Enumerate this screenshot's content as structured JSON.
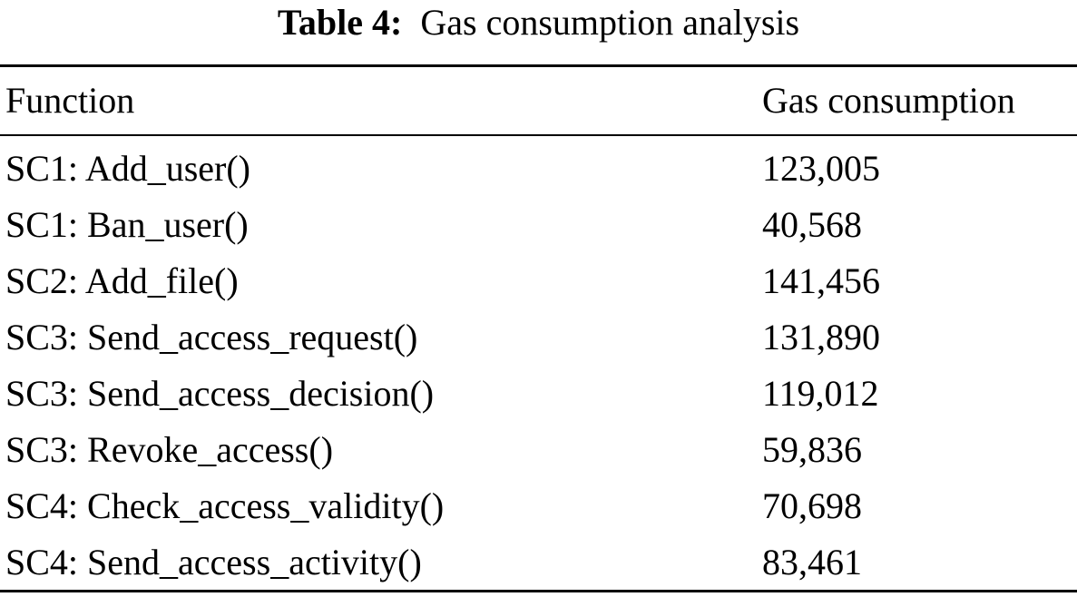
{
  "caption": {
    "label": "Table 4:",
    "text": "Gas consumption analysis"
  },
  "table": {
    "columns": [
      "Function",
      "Gas consumption"
    ],
    "rows": [
      {
        "function": "SC1: Add_user()",
        "gas": "123,005"
      },
      {
        "function": "SC1: Ban_user()",
        "gas": "40,568"
      },
      {
        "function": "SC2: Add_file()",
        "gas": "141,456"
      },
      {
        "function": "SC3: Send_access_request()",
        "gas": "131,890"
      },
      {
        "function": "SC3: Send_access_decision()",
        "gas": "119,012"
      },
      {
        "function": "SC3: Revoke_access()",
        "gas": "59,836"
      },
      {
        "function": "SC4: Check_access_validity()",
        "gas": "70,698"
      },
      {
        "function": "SC4: Send_access_activity()",
        "gas": "83,461"
      }
    ]
  }
}
